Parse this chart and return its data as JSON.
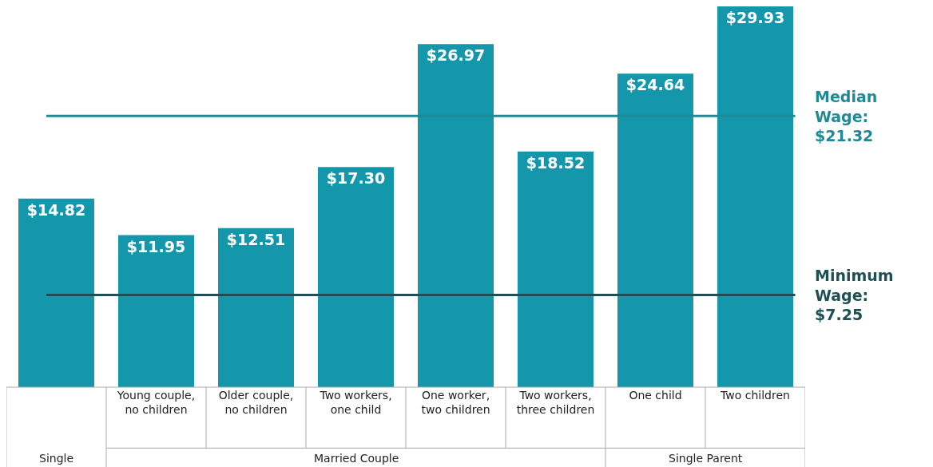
{
  "chart_data": {
    "type": "bar",
    "categories": [
      null,
      "Young couple, no children",
      "Older couple, no children",
      "Two workers, one child",
      "One worker, two children",
      "Two workers, three children",
      "One child",
      "Two children"
    ],
    "values": [
      14.82,
      11.95,
      12.51,
      17.3,
      26.97,
      18.52,
      24.64,
      29.93
    ],
    "value_labels": [
      "$14.82",
      "$11.95",
      "$12.51",
      "$17.30",
      "$26.97",
      "$18.52",
      "$24.64",
      "$29.93"
    ],
    "color": "#1497ab",
    "ref_lines": [
      {
        "axis": "y",
        "value": 21.32,
        "label": "Median Wage: $21.32",
        "color": "#1f8a96"
      },
      {
        "axis": "y",
        "value": 7.25,
        "label": "Minimum Wage: $7.25",
        "color": "#1e4f55"
      }
    ],
    "annotations": [
      "Single",
      "Married Couple",
      "Single Parent"
    ]
  }
}
